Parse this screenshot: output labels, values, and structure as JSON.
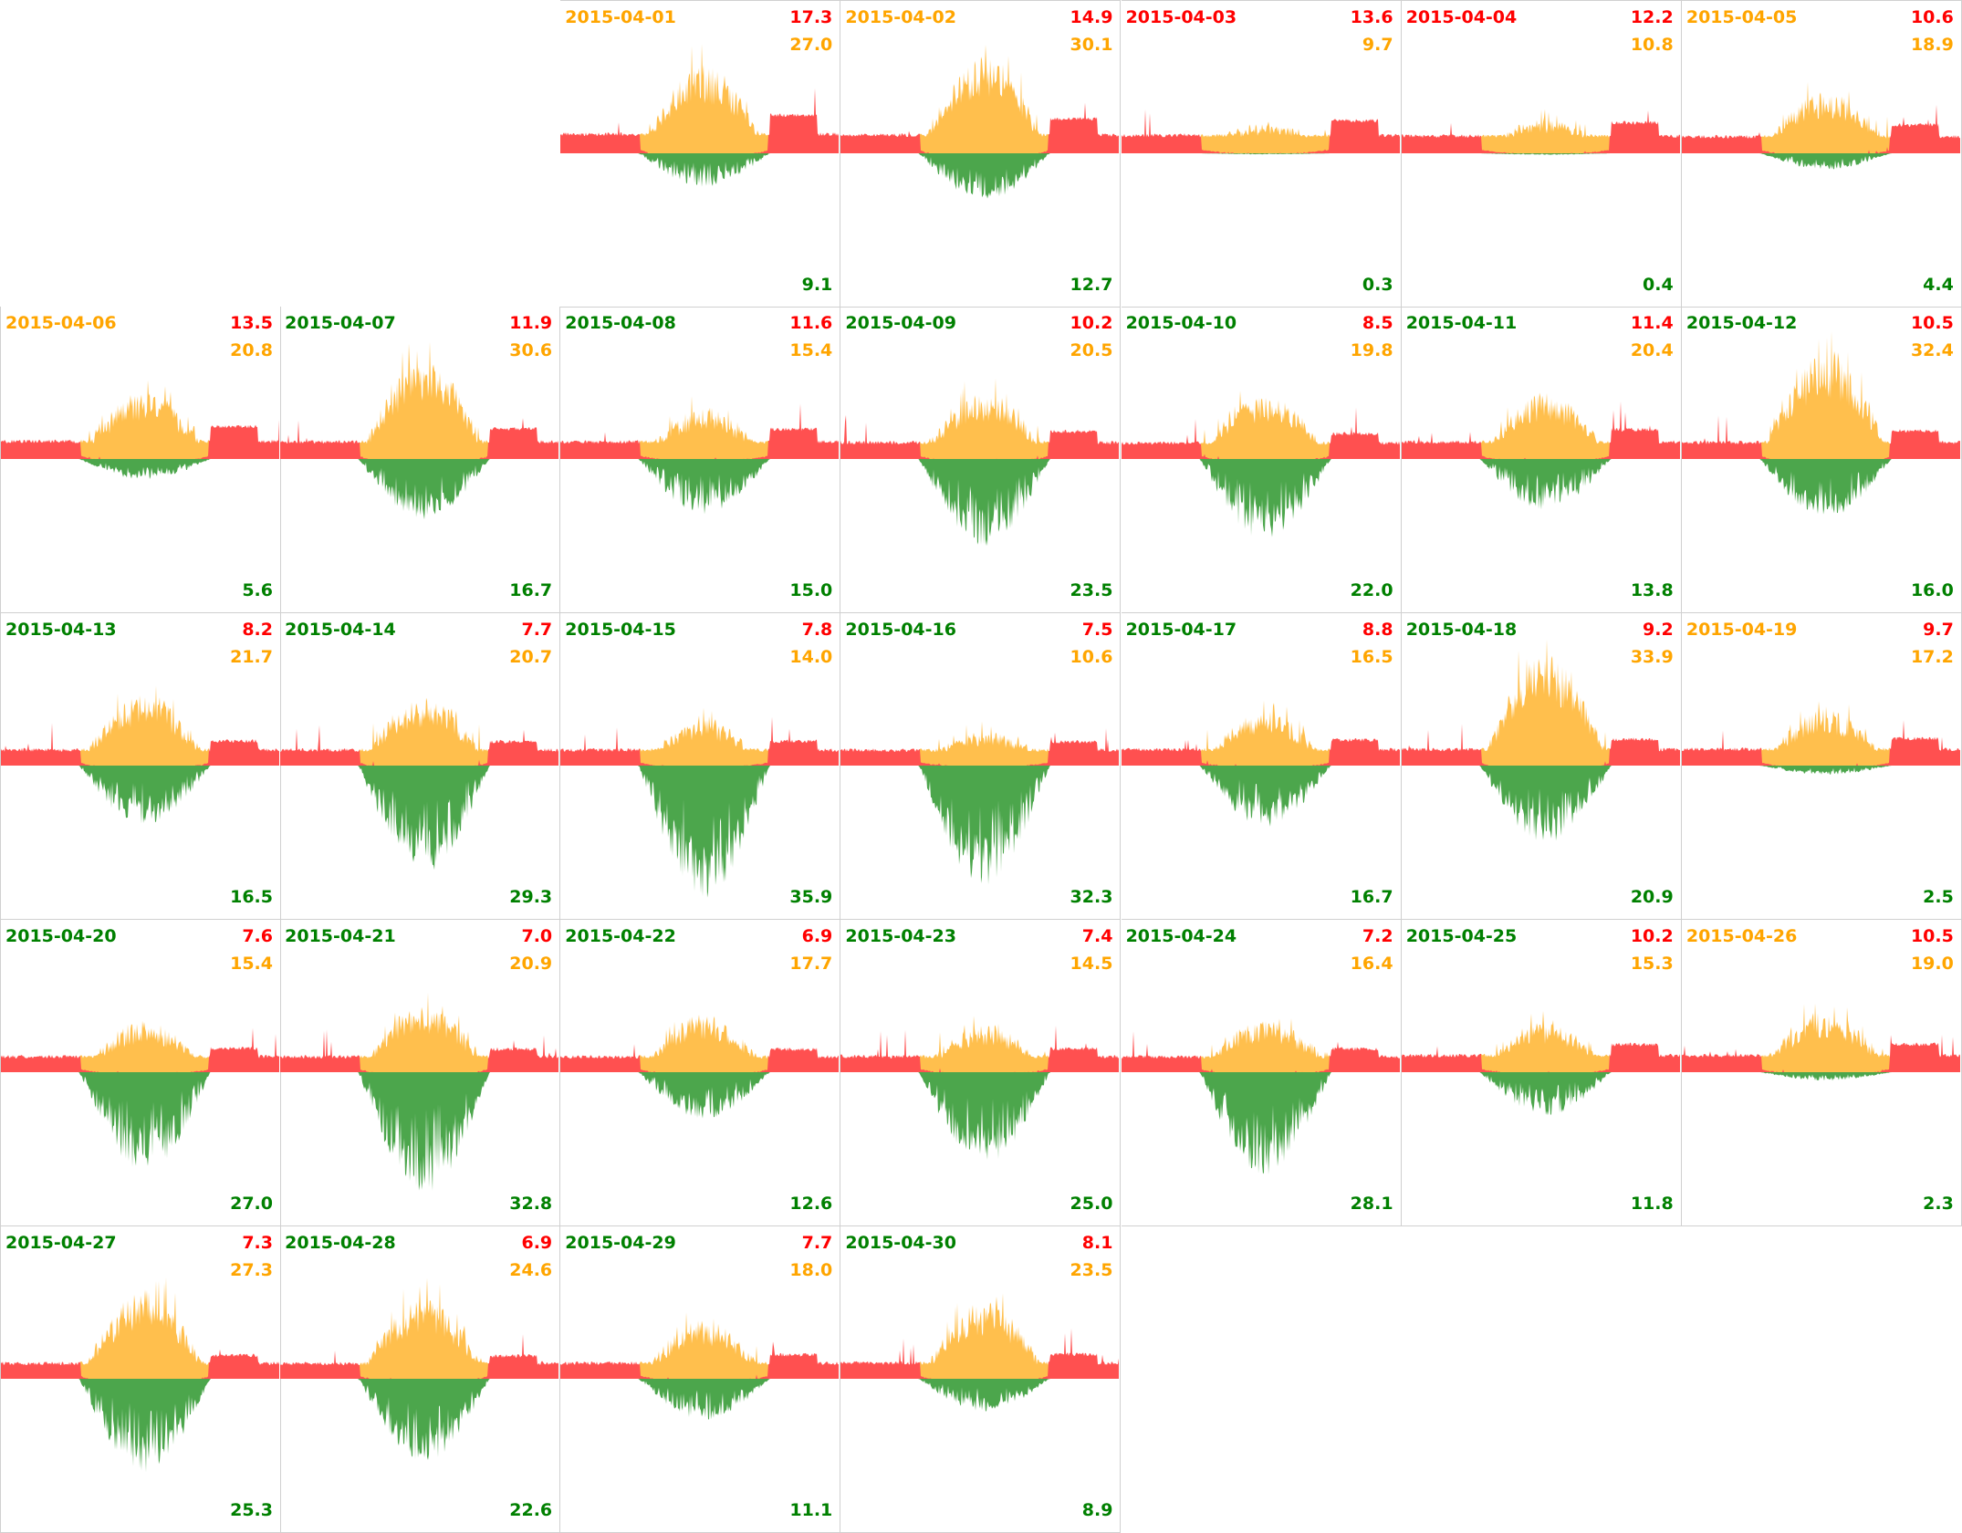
{
  "colors": {
    "green": "#008000",
    "orange": "#FFA500",
    "red": "#FF0000",
    "green_fill": "#4CA64C",
    "orange_fill": "#FFBF4D",
    "red_fill": "#FF5050"
  },
  "chart_data": {
    "type": "area",
    "title": "",
    "layout": "calendar grid, weeks as rows, 7 columns",
    "legend": "none",
    "fields": [
      "date",
      "red_value",
      "orange_value",
      "green_value",
      "date_color"
    ],
    "days": [
      {
        "date": "2015-04-01",
        "red": "17.3",
        "orange": "27.0",
        "green": "9.1",
        "date_color": "orange"
      },
      {
        "date": "2015-04-02",
        "red": "14.9",
        "orange": "30.1",
        "green": "12.7",
        "date_color": "orange"
      },
      {
        "date": "2015-04-03",
        "red": "13.6",
        "orange": "9.7",
        "green": "0.3",
        "date_color": "red"
      },
      {
        "date": "2015-04-04",
        "red": "12.2",
        "orange": "10.8",
        "green": "0.4",
        "date_color": "red"
      },
      {
        "date": "2015-04-05",
        "red": "10.6",
        "orange": "18.9",
        "green": "4.4",
        "date_color": "orange"
      },
      {
        "date": "2015-04-06",
        "red": "13.5",
        "orange": "20.8",
        "green": "5.6",
        "date_color": "orange"
      },
      {
        "date": "2015-04-07",
        "red": "11.9",
        "orange": "30.6",
        "green": "16.7",
        "date_color": "green"
      },
      {
        "date": "2015-04-08",
        "red": "11.6",
        "orange": "15.4",
        "green": "15.0",
        "date_color": "green"
      },
      {
        "date": "2015-04-09",
        "red": "10.2",
        "orange": "20.5",
        "green": "23.5",
        "date_color": "green"
      },
      {
        "date": "2015-04-10",
        "red": "8.5",
        "orange": "19.8",
        "green": "22.0",
        "date_color": "green"
      },
      {
        "date": "2015-04-11",
        "red": "11.4",
        "orange": "20.4",
        "green": "13.8",
        "date_color": "green"
      },
      {
        "date": "2015-04-12",
        "red": "10.5",
        "orange": "32.4",
        "green": "16.0",
        "date_color": "green"
      },
      {
        "date": "2015-04-13",
        "red": "8.2",
        "orange": "21.7",
        "green": "16.5",
        "date_color": "green"
      },
      {
        "date": "2015-04-14",
        "red": "7.7",
        "orange": "20.7",
        "green": "29.3",
        "date_color": "green"
      },
      {
        "date": "2015-04-15",
        "red": "7.8",
        "orange": "14.0",
        "green": "35.9",
        "date_color": "green"
      },
      {
        "date": "2015-04-16",
        "red": "7.5",
        "orange": "10.6",
        "green": "32.3",
        "date_color": "green"
      },
      {
        "date": "2015-04-17",
        "red": "8.8",
        "orange": "16.5",
        "green": "16.7",
        "date_color": "green"
      },
      {
        "date": "2015-04-18",
        "red": "9.2",
        "orange": "33.9",
        "green": "20.9",
        "date_color": "green"
      },
      {
        "date": "2015-04-19",
        "red": "9.7",
        "orange": "17.2",
        "green": "2.5",
        "date_color": "orange"
      },
      {
        "date": "2015-04-20",
        "red": "7.6",
        "orange": "15.4",
        "green": "27.0",
        "date_color": "green"
      },
      {
        "date": "2015-04-21",
        "red": "7.0",
        "orange": "20.9",
        "green": "32.8",
        "date_color": "green"
      },
      {
        "date": "2015-04-22",
        "red": "6.9",
        "orange": "17.7",
        "green": "12.6",
        "date_color": "green"
      },
      {
        "date": "2015-04-23",
        "red": "7.4",
        "orange": "14.5",
        "green": "25.0",
        "date_color": "green"
      },
      {
        "date": "2015-04-24",
        "red": "7.2",
        "orange": "16.4",
        "green": "28.1",
        "date_color": "green"
      },
      {
        "date": "2015-04-25",
        "red": "10.2",
        "orange": "15.3",
        "green": "11.8",
        "date_color": "green"
      },
      {
        "date": "2015-04-26",
        "red": "10.5",
        "orange": "19.0",
        "green": "2.3",
        "date_color": "orange"
      },
      {
        "date": "2015-04-27",
        "red": "7.3",
        "orange": "27.3",
        "green": "25.3",
        "date_color": "green"
      },
      {
        "date": "2015-04-28",
        "red": "6.9",
        "orange": "24.6",
        "green": "22.6",
        "date_color": "green"
      },
      {
        "date": "2015-04-29",
        "red": "7.7",
        "orange": "18.0",
        "green": "11.1",
        "date_color": "green"
      },
      {
        "date": "2015-04-30",
        "red": "8.1",
        "orange": "23.5",
        "green": "8.9",
        "date_color": "green"
      }
    ]
  }
}
